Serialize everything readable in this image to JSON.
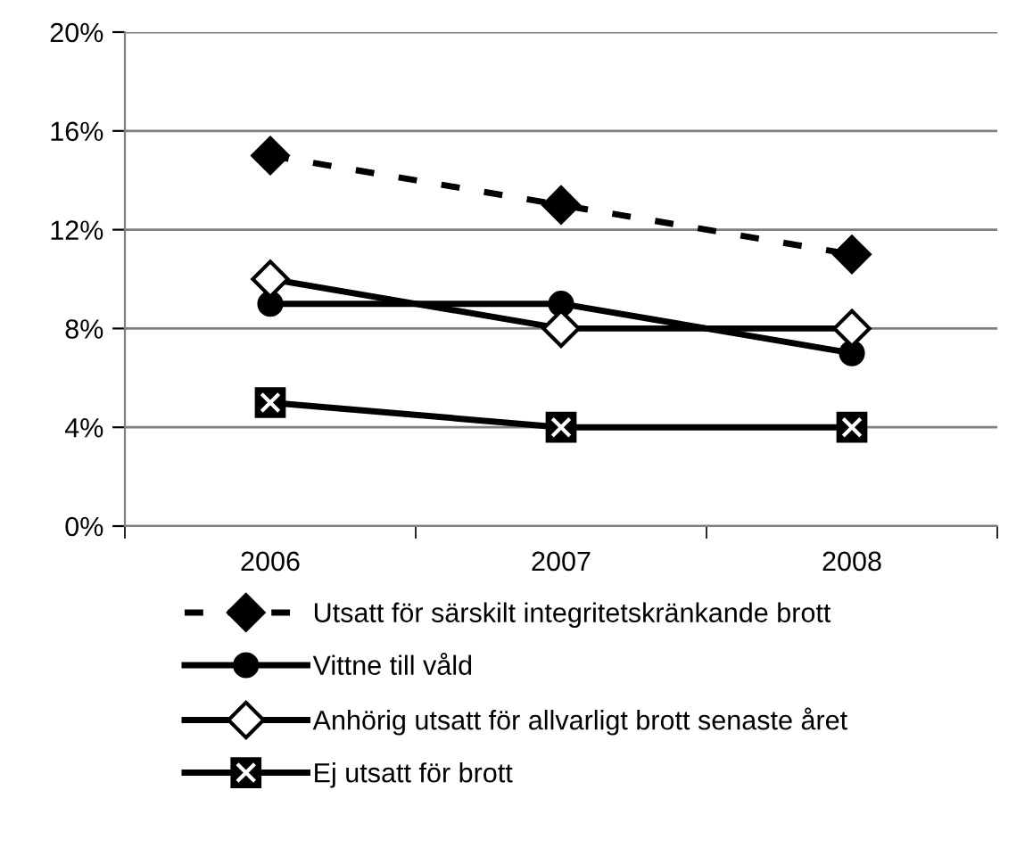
{
  "chart_data": {
    "type": "line",
    "categories": [
      "2006",
      "2007",
      "2008"
    ],
    "series": [
      {
        "name": "Utsatt för särskilt integritetskränkande brott",
        "color": "#000000",
        "values": [
          15,
          13,
          11
        ],
        "marker": "diamond",
        "line_style": "dashed"
      },
      {
        "name": "Vittne till våld",
        "color": "#000000",
        "values": [
          9,
          9,
          7
        ],
        "marker": "circle",
        "line_style": "solid"
      },
      {
        "name": "Anhörig utsatt för allvarligt brott senaste året",
        "color": "#000000",
        "values": [
          10,
          8,
          8
        ],
        "marker": "diamond",
        "line_style": "solid"
      },
      {
        "name": "Ej utsatt för brott",
        "color": "#000000",
        "values": [
          5,
          4,
          4
        ],
        "marker": "square",
        "line_style": "solid"
      }
    ],
    "ylim": [
      0,
      20
    ],
    "yticks": [
      {
        "value": 0,
        "label": "0%"
      },
      {
        "value": 4,
        "label": "4%"
      },
      {
        "value": 8,
        "label": "8%"
      },
      {
        "value": 12,
        "label": "12%"
      },
      {
        "value": 16,
        "label": "16%"
      },
      {
        "value": 20,
        "label": "20%"
      }
    ],
    "grid": "y",
    "legend": "bottom"
  }
}
